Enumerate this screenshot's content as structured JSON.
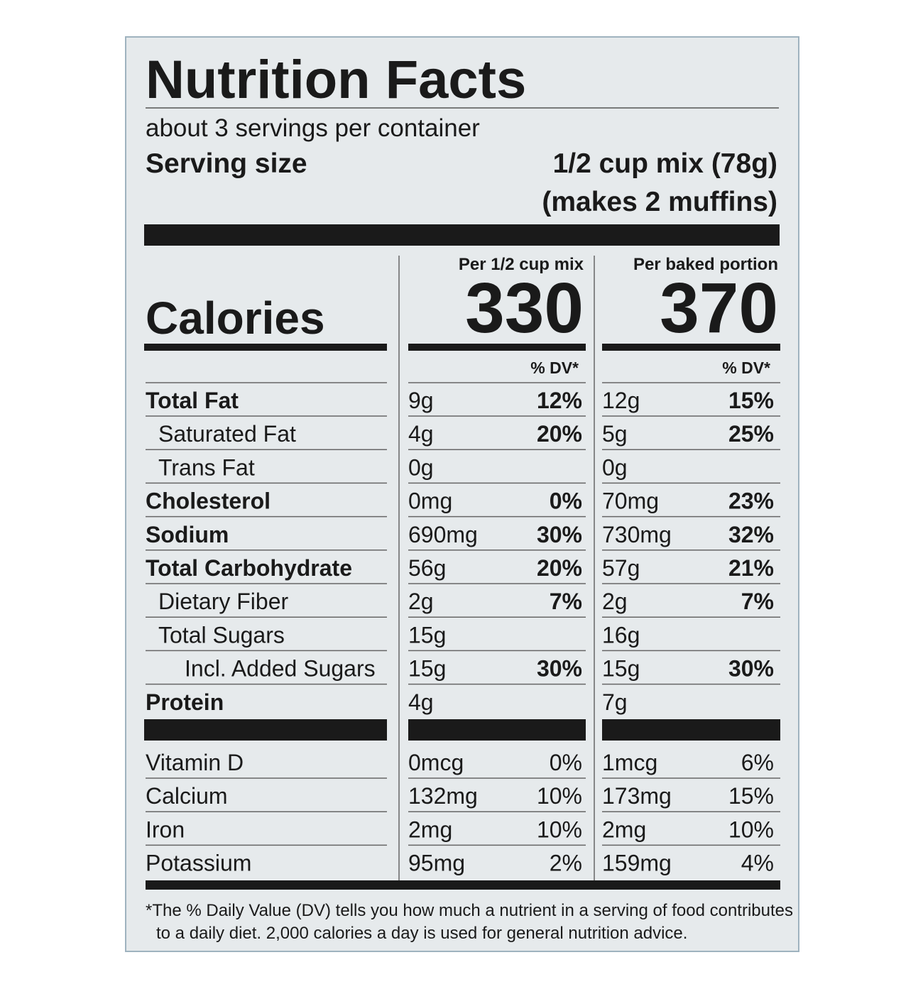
{
  "title": "Nutrition Facts",
  "servings": "about 3 servings per container",
  "serving_size": {
    "label": "Serving size",
    "value": "1/2 cup mix (78g)",
    "note": "(makes 2 muffins)"
  },
  "calories_label": "Calories",
  "columns": [
    {
      "header": "Per 1/2 cup mix",
      "calories": "330",
      "dv_header": "% DV*"
    },
    {
      "header": "Per baked portion",
      "calories": "370",
      "dv_header": "% DV*"
    }
  ],
  "nutrients": [
    {
      "name": "Total Fat",
      "level": 0,
      "cols": [
        [
          "9g",
          "12%"
        ],
        [
          "12g",
          "15%"
        ]
      ]
    },
    {
      "name": "Saturated Fat",
      "level": 1,
      "cols": [
        [
          "4g",
          "20%"
        ],
        [
          "5g",
          "25%"
        ]
      ]
    },
    {
      "name": "Trans Fat",
      "level": 1,
      "cols": [
        [
          "0g"
        ],
        [
          "0g"
        ]
      ]
    },
    {
      "name": "Cholesterol",
      "level": 0,
      "cols": [
        [
          "0mg",
          "0%"
        ],
        [
          "70mg",
          "23%"
        ]
      ]
    },
    {
      "name": "Sodium",
      "level": 0,
      "cols": [
        [
          "690mg",
          "30%"
        ],
        [
          "730mg",
          "32%"
        ]
      ]
    },
    {
      "name": "Total Carbohydrate",
      "level": 0,
      "cols": [
        [
          "56g",
          "20%"
        ],
        [
          "57g",
          "21%"
        ]
      ]
    },
    {
      "name": "Dietary Fiber",
      "level": 1,
      "cols": [
        [
          "2g",
          "7%"
        ],
        [
          "2g",
          "7%"
        ]
      ]
    },
    {
      "name": "Total Sugars",
      "level": 1,
      "cols": [
        [
          "15g"
        ],
        [
          "16g"
        ]
      ]
    },
    {
      "name": "Incl. Added Sugars",
      "level": 2,
      "cols": [
        [
          "15g",
          "30%"
        ],
        [
          "15g",
          "30%"
        ]
      ]
    },
    {
      "name": "Protein",
      "level": 0,
      "cols": [
        [
          "4g"
        ],
        [
          "7g"
        ]
      ]
    }
  ],
  "vitamins": [
    {
      "name": "Vitamin D",
      "cols": [
        [
          "0mcg",
          "0%"
        ],
        [
          "1mcg",
          "6%"
        ]
      ]
    },
    {
      "name": "Calcium",
      "cols": [
        [
          "132mg",
          "10%"
        ],
        [
          "173mg",
          "15%"
        ]
      ]
    },
    {
      "name": "Iron",
      "cols": [
        [
          "2mg",
          "10%"
        ],
        [
          "2mg",
          "10%"
        ]
      ]
    },
    {
      "name": "Potassium",
      "cols": [
        [
          "95mg",
          "2%"
        ],
        [
          "159mg",
          "4%"
        ]
      ]
    }
  ],
  "footnote": [
    "*The % Daily Value (DV) tells you how much a nutrient in a serving of food contributes",
    "to a daily diet. 2,000 calories a day is used for general nutrition advice."
  ]
}
